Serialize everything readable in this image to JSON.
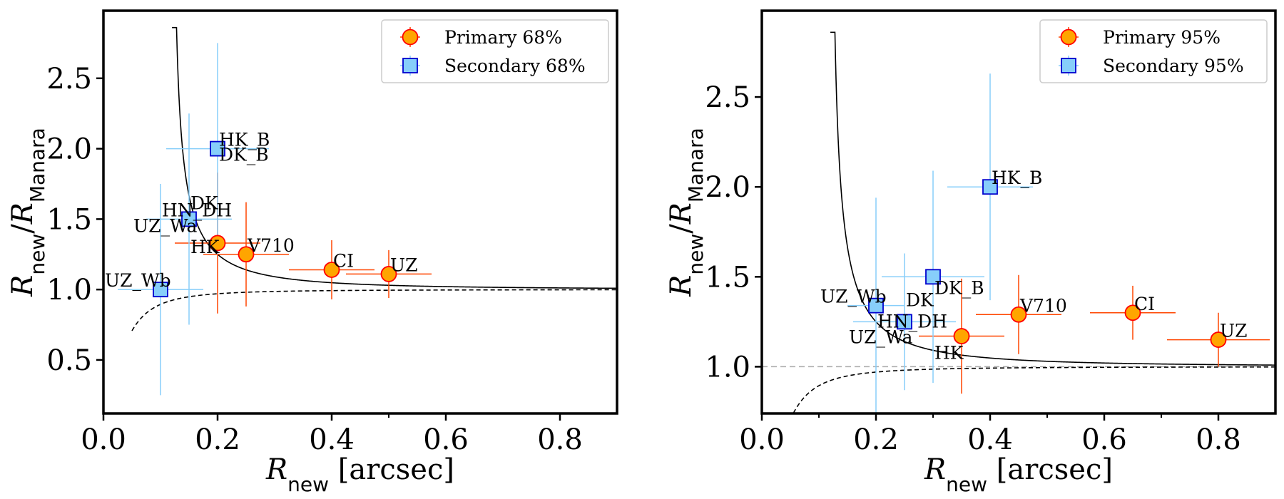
{
  "chart_data": [
    {
      "type": "scatter",
      "panel": "left",
      "xlabel_main": "R",
      "xlabel_sub": "new",
      "xlabel_unit": " [arcsec]",
      "ylabel_main_1": "R",
      "ylabel_sub_1": "new",
      "ylabel_slash": "/",
      "ylabel_main_2": "R",
      "ylabel_sub_2": "Manara",
      "xlim": [
        0.0,
        0.9
      ],
      "ylim": [
        0.12,
        2.98
      ],
      "xticks": [
        "0.0",
        "0.2",
        "0.4",
        "0.6",
        "0.8"
      ],
      "yticks": [
        "0.5",
        "1.0",
        "1.5",
        "2.0",
        "2.5"
      ],
      "legend_position": "top-right",
      "series": [
        {
          "name": "Primary 68%",
          "marker": "circle",
          "face_color": "#FFA500",
          "edge_color": "#FF0000",
          "err_color": "#FF4500",
          "points": [
            {
              "x": 0.4,
              "y": 1.14,
              "xerr": 0.075,
              "yerr": 0.21,
              "label": "CI"
            },
            {
              "x": 0.5,
              "y": 1.11,
              "xerr": 0.075,
              "yerr": 0.17,
              "label": "UZ"
            },
            {
              "x": 0.25,
              "y": 1.25,
              "xerr": 0.075,
              "yerr": 0.37,
              "label": "V710"
            },
            {
              "x": 0.2,
              "y": 1.33,
              "xerr": 0.075,
              "yerr": 0.5,
              "label": "HK"
            }
          ]
        },
        {
          "name": "Secondary 68%",
          "marker": "square",
          "face_color": "#87CEFA",
          "edge_color": "#0000CD",
          "err_color": "#87CEFA",
          "points": [
            {
              "x": 0.2,
              "y": 2.0,
              "xerr": 0.09,
              "yerr": 0.75,
              "label": "HK_B"
            },
            {
              "x": 0.15,
              "y": 1.5,
              "xerr": 0.075,
              "yerr": 0.75,
              "label": "HN_DH"
            },
            {
              "x": 0.1,
              "y": 1.0,
              "xerr": 0.075,
              "yerr": 0.75,
              "label": "UZ_Wb"
            }
          ]
        }
      ],
      "extra_labels": [
        {
          "text": "DK_B",
          "x": 0.2,
          "y": 2.0
        },
        {
          "text": "DK",
          "x": 0.15,
          "y": 1.5
        },
        {
          "text": "UZ_Wa",
          "x": 0.15,
          "y": 1.5
        }
      ],
      "curves": [
        {
          "style": "solid",
          "formula": "1/sqrt(1-(r0/x)^2)",
          "r0": 0.12
        },
        {
          "style": "dashed",
          "formula": "1/sqrt(1+(r0/x)^2)",
          "r0": 0.05
        }
      ]
    },
    {
      "type": "scatter",
      "panel": "right",
      "xlabel_main": "R",
      "xlabel_sub": "new",
      "xlabel_unit": " [arcsec]",
      "ylabel_main_1": "R",
      "ylabel_sub_1": "new",
      "ylabel_slash": "/",
      "ylabel_main_2": "R",
      "ylabel_sub_2": "Manara",
      "xlim": [
        0.0,
        0.9
      ],
      "ylim": [
        0.74,
        2.98
      ],
      "xticks": [
        "0.0",
        "0.2",
        "0.4",
        "0.6",
        "0.8"
      ],
      "yticks": [
        "1.0",
        "1.5",
        "2.0",
        "2.5"
      ],
      "legend_position": "top-right",
      "reference_line": {
        "y": 1.0,
        "style": "dashed",
        "color": "#AAAAAA"
      },
      "series": [
        {
          "name": "Primary 95%",
          "marker": "circle",
          "face_color": "#FFA500",
          "edge_color": "#FF0000",
          "err_color": "#FF4500",
          "points": [
            {
              "x": 0.65,
              "y": 1.3,
              "xerr": 0.075,
              "yerr": 0.15,
              "label": "CI"
            },
            {
              "x": 0.8,
              "y": 1.15,
              "xerr": 0.09,
              "yerr": 0.15,
              "label": "UZ"
            },
            {
              "x": 0.45,
              "y": 1.29,
              "xerr": 0.075,
              "yerr": 0.22,
              "label": "V710"
            },
            {
              "x": 0.35,
              "y": 1.17,
              "xerr": 0.075,
              "yerr": 0.32,
              "label": "HK"
            }
          ]
        },
        {
          "name": "Secondary 95%",
          "marker": "square",
          "face_color": "#87CEFA",
          "edge_color": "#0000CD",
          "err_color": "#87CEFA",
          "points": [
            {
              "x": 0.4,
              "y": 2.0,
              "xerr": 0.075,
              "yerr": 0.63,
              "label": "HK_B"
            },
            {
              "x": 0.3,
              "y": 1.5,
              "xerr": 0.09,
              "yerr": 0.59,
              "label": "DK_B"
            },
            {
              "x": 0.2,
              "y": 1.34,
              "xerr": 0.05,
              "yerr": 0.6,
              "label": "UZ_Wb"
            },
            {
              "x": 0.25,
              "y": 1.25,
              "xerr": 0.09,
              "yerr": 0.38,
              "label": "HN_DH"
            }
          ]
        }
      ],
      "extra_labels": [
        {
          "text": "DK",
          "x": 0.25,
          "y": 1.25
        },
        {
          "text": "UZ_Wa",
          "x": 0.25,
          "y": 1.25
        }
      ],
      "curves": [
        {
          "style": "solid",
          "formula": "1/sqrt(1-(r0/x)^2)",
          "r0": 0.12
        },
        {
          "style": "dashed",
          "formula": "1/sqrt(1+(r0/x)^2)",
          "r0": 0.05
        }
      ]
    }
  ]
}
